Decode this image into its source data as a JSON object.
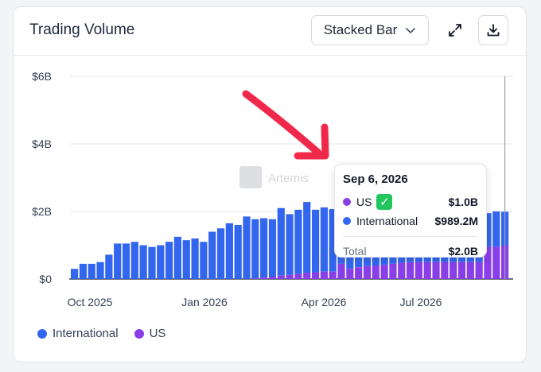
{
  "header": {
    "title": "Trading Volume",
    "chart_type_select": "Stacked Bar",
    "icons": [
      "expand-icon",
      "download-icon",
      "chevron-down-icon"
    ]
  },
  "watermark": "Artemis",
  "colors": {
    "international": "#3366ee",
    "us": "#8a3ee8",
    "annotation_arrow": "#f0284a",
    "check": "#22c55e"
  },
  "legend": [
    {
      "name": "International",
      "color": "#3366ee"
    },
    {
      "name": "US",
      "color": "#8a3ee8"
    }
  ],
  "tooltip": {
    "date": "Sep 6, 2026",
    "rows": [
      {
        "label": "US",
        "value": "$1.0B",
        "color": "#8a3ee8",
        "badge": "check-icon"
      },
      {
        "label": "International",
        "value": "$989.2M",
        "color": "#3366ee"
      }
    ],
    "total_label": "Total",
    "total_value": "$2.0B"
  },
  "chart_data": {
    "type": "bar",
    "stacked": true,
    "y_ticks": [
      "$0",
      "$2B",
      "$4B",
      "$6B"
    ],
    "x_ticks": [
      "Oct 2025",
      "Jan 2026",
      "Apr 2026",
      "Jul 2026"
    ],
    "ylim": [
      0,
      6
    ],
    "units": "$B",
    "grid": true,
    "series": [
      {
        "name": "International",
        "values": [
          0.3,
          0.45,
          0.45,
          0.5,
          0.72,
          1.05,
          1.05,
          1.1,
          1.0,
          0.95,
          1.0,
          1.1,
          1.25,
          1.15,
          1.2,
          1.1,
          1.4,
          1.5,
          1.65,
          1.6,
          1.85,
          1.75,
          1.75,
          1.7,
          2.0,
          1.8,
          1.9,
          2.1,
          1.85,
          1.9,
          1.85,
          1.5,
          1.75,
          1.65,
          1.65,
          1.55,
          1.5,
          1.5,
          1.5,
          1.5,
          1.5,
          1.5,
          1.5,
          1.5,
          1.5,
          1.5,
          1.5,
          1.5,
          1.0,
          1.05,
          0.99
        ]
      },
      {
        "name": "US",
        "values": [
          0,
          0,
          0,
          0,
          0,
          0,
          0,
          0,
          0,
          0,
          0,
          0,
          0,
          0,
          0,
          0,
          0,
          0,
          0,
          0,
          0,
          0.02,
          0.05,
          0.07,
          0.1,
          0.12,
          0.15,
          0.18,
          0.2,
          0.22,
          0.22,
          0.45,
          0.3,
          0.35,
          0.38,
          0.4,
          0.42,
          0.45,
          0.48,
          0.5,
          0.5,
          0.5,
          0.5,
          0.5,
          0.5,
          0.5,
          0.5,
          0.5,
          0.95,
          0.95,
          1.0
        ]
      }
    ]
  }
}
